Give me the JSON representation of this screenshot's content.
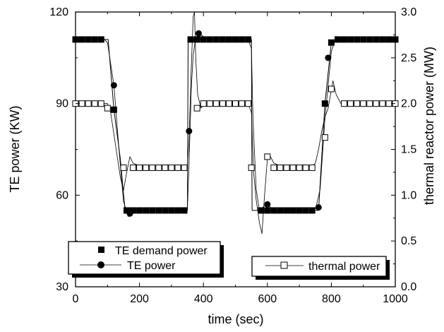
{
  "chart_data": {
    "type": "line",
    "title": "",
    "xlabel": "time (sec)",
    "ylabel": "TE power (KW)",
    "y2label": "thermal reactor power (MW)",
    "xlim": [
      0,
      1000
    ],
    "ylim": [
      30,
      120
    ],
    "y2lim": [
      0.0,
      3.0
    ],
    "x_ticks": [
      "0",
      "200",
      "400",
      "600",
      "800",
      "1000"
    ],
    "y_ticks": [
      "30",
      "60",
      "90",
      "120"
    ],
    "y2_ticks": [
      "0.0",
      "0.5",
      "1.0",
      "1.5",
      "2.0",
      "2.5",
      "3.0"
    ],
    "grid": false,
    "legend_entries": [
      "TE demand power",
      "TE power",
      "thermal power"
    ],
    "series": [
      {
        "name": "TE demand power",
        "axis": "left",
        "marker": "filled-square",
        "line": "solid",
        "x": [
          0,
          20,
          40,
          60,
          80,
          100,
          102,
          120,
          140,
          155,
          160,
          180,
          200,
          220,
          240,
          260,
          280,
          300,
          320,
          340,
          350,
          352,
          360,
          380,
          400,
          420,
          440,
          460,
          480,
          500,
          520,
          540,
          550,
          552,
          560,
          580,
          600,
          620,
          640,
          660,
          680,
          700,
          720,
          740,
          752,
          760,
          780,
          800,
          820,
          840,
          860,
          880,
          900,
          920,
          940,
          960,
          980,
          1000
        ],
        "y": [
          111,
          111,
          111,
          111,
          111,
          111,
          111,
          88,
          72,
          55,
          55,
          55,
          55,
          55,
          55,
          55,
          55,
          55,
          55,
          55,
          55,
          111,
          111,
          111,
          111,
          111,
          111,
          111,
          111,
          111,
          111,
          111,
          111,
          55,
          55,
          55,
          55,
          55,
          55,
          55,
          55,
          55,
          55,
          55,
          55,
          55,
          90,
          110,
          111,
          111,
          111,
          111,
          111,
          111,
          111,
          111,
          111,
          111
        ],
        "marker_x": [
          0,
          20,
          40,
          60,
          80,
          120,
          160,
          180,
          200,
          220,
          240,
          260,
          280,
          300,
          320,
          340,
          360,
          380,
          400,
          420,
          440,
          460,
          480,
          500,
          520,
          540,
          580,
          600,
          620,
          640,
          660,
          680,
          700,
          720,
          740,
          780,
          800,
          820,
          840,
          860,
          880,
          900,
          920,
          940,
          960,
          980,
          1000
        ],
        "marker_y": [
          111,
          111,
          111,
          111,
          111,
          88,
          55,
          55,
          55,
          55,
          55,
          55,
          55,
          55,
          55,
          55,
          111,
          111,
          111,
          111,
          111,
          111,
          111,
          111,
          111,
          111,
          55,
          55,
          55,
          55,
          55,
          55,
          55,
          55,
          55,
          90,
          110,
          111,
          111,
          111,
          111,
          111,
          111,
          111,
          111,
          111,
          111
        ]
      },
      {
        "name": "TE power",
        "axis": "left",
        "marker": "filled-circle",
        "line": "solid",
        "x": [
          0,
          90,
          100,
          110,
          120,
          135,
          150,
          165,
          175,
          190,
          220,
          340,
          350,
          355,
          362,
          368,
          375,
          385,
          400,
          420,
          540,
          550,
          555,
          565,
          575,
          585,
          600,
          620,
          740,
          752,
          765,
          780,
          800,
          815,
          840,
          1000
        ],
        "y": [
          111,
          111,
          110,
          103,
          96,
          76,
          58,
          53,
          54,
          55,
          55,
          55,
          56,
          70,
          95,
          106,
          111,
          113,
          112,
          111,
          111,
          108,
          85,
          62,
          55,
          56,
          57,
          55,
          55,
          56,
          62,
          85,
          107,
          112,
          111,
          111
        ],
        "marker_x": [
          120,
          170,
          355,
          385,
          600,
          760,
          790,
          820
        ],
        "marker_y": [
          96,
          54,
          81,
          113,
          57,
          56,
          105,
          111
        ]
      },
      {
        "name": "thermal power",
        "axis": "right",
        "marker": "open-square",
        "line": "solid",
        "x": [
          0,
          100,
          110,
          125,
          140,
          150,
          160,
          170,
          180,
          200,
          250,
          340,
          350,
          355,
          362,
          368,
          372,
          376,
          382,
          392,
          405,
          430,
          540,
          550,
          557,
          565,
          575,
          583,
          590,
          600,
          610,
          620,
          640,
          680,
          740,
          750,
          760,
          770,
          780,
          790,
          800,
          805,
          815,
          830,
          860,
          1000
        ],
        "y": [
          2.0,
          2.0,
          1.9,
          1.55,
          1.2,
          1.05,
          1.25,
          1.42,
          1.35,
          1.32,
          1.32,
          1.32,
          1.32,
          1.6,
          2.4,
          2.95,
          3.0,
          2.5,
          2.1,
          1.95,
          2.0,
          2.0,
          2.0,
          1.9,
          1.25,
          0.95,
          0.7,
          0.58,
          0.95,
          1.4,
          1.42,
          1.35,
          1.32,
          1.32,
          1.32,
          1.35,
          1.5,
          1.7,
          1.85,
          1.95,
          2.15,
          2.25,
          2.1,
          2.0,
          2.0,
          2.0
        ],
        "marker_x": [
          0,
          20,
          40,
          60,
          80,
          100,
          150,
          180,
          200,
          220,
          240,
          260,
          280,
          300,
          320,
          340,
          380,
          400,
          420,
          440,
          460,
          480,
          500,
          520,
          540,
          550,
          600,
          620,
          640,
          660,
          680,
          700,
          720,
          740,
          780,
          800,
          840,
          860,
          880,
          900,
          920,
          940,
          960,
          980,
          1000
        ],
        "marker_y": [
          2.0,
          2.0,
          2.0,
          2.0,
          2.0,
          1.95,
          1.3,
          1.3,
          1.3,
          1.3,
          1.3,
          1.3,
          1.3,
          1.3,
          1.3,
          1.3,
          1.95,
          2.0,
          2.0,
          2.0,
          2.0,
          2.0,
          2.0,
          2.0,
          2.0,
          1.3,
          1.42,
          1.3,
          1.3,
          1.3,
          1.3,
          1.3,
          1.3,
          1.3,
          1.63,
          2.16,
          2.0,
          2.0,
          2.0,
          2.0,
          2.0,
          2.0,
          2.0,
          2.0,
          2.0
        ]
      }
    ]
  }
}
